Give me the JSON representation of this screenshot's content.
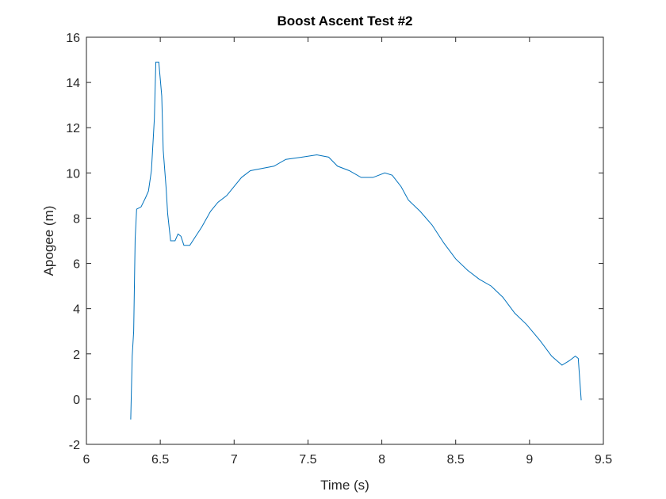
{
  "chart_data": {
    "type": "line",
    "title": "Boost Ascent Test #2",
    "xlabel": "Time (s)",
    "ylabel": "Apogee (m)",
    "x": [
      6.3,
      6.31,
      6.32,
      6.33,
      6.34,
      6.37,
      6.4,
      6.42,
      6.44,
      6.46,
      6.47,
      6.49,
      6.51,
      6.52,
      6.54,
      6.55,
      6.57,
      6.6,
      6.62,
      6.64,
      6.66,
      6.7,
      6.74,
      6.78,
      6.84,
      6.89,
      6.95,
      7.0,
      7.05,
      7.11,
      7.19,
      7.27,
      7.35,
      7.46,
      7.56,
      7.64,
      7.7,
      7.78,
      7.86,
      7.94,
      8.02,
      8.07,
      8.13,
      8.18,
      8.26,
      8.34,
      8.42,
      8.5,
      8.58,
      8.66,
      8.74,
      8.82,
      8.9,
      8.98,
      9.07,
      9.15,
      9.22,
      9.27,
      9.31,
      9.33,
      9.35
    ],
    "series": [
      {
        "name": "Apogee",
        "color": "#0072bd",
        "values": [
          -0.9,
          1.9,
          3.0,
          7.1,
          8.4,
          8.5,
          8.9,
          9.2,
          10.1,
          12.4,
          14.9,
          14.9,
          13.4,
          11.0,
          9.3,
          8.2,
          7.0,
          7.0,
          7.3,
          7.2,
          6.8,
          6.8,
          7.2,
          7.6,
          8.3,
          8.7,
          9.0,
          9.4,
          9.8,
          10.1,
          10.2,
          10.3,
          10.6,
          10.7,
          10.8,
          10.7,
          10.3,
          10.1,
          9.8,
          9.8,
          10.0,
          9.9,
          9.4,
          8.8,
          8.3,
          7.7,
          6.9,
          6.2,
          5.7,
          5.3,
          5.0,
          4.5,
          3.8,
          3.3,
          2.6,
          1.9,
          1.5,
          1.7,
          1.9,
          1.8,
          -0.05
        ]
      }
    ],
    "xlim": [
      6,
      9.5
    ],
    "xticks": [
      6,
      6.5,
      7,
      7.5,
      8,
      8.5,
      9,
      9.5
    ],
    "ylim": [
      -2,
      16
    ],
    "yticks": [
      -2,
      0,
      2,
      4,
      6,
      8,
      10,
      12,
      14,
      16
    ],
    "grid": false
  }
}
